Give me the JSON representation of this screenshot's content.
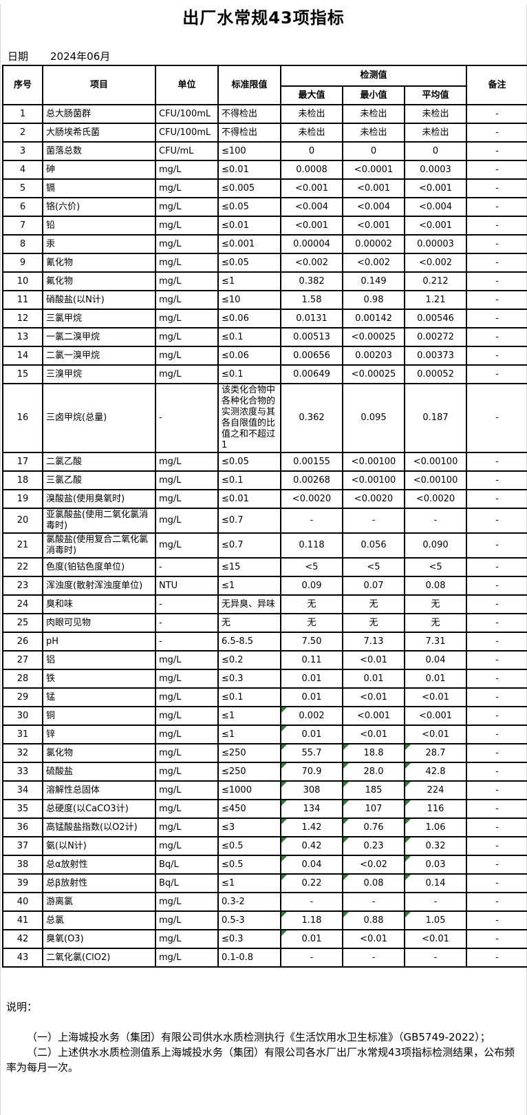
{
  "page": {
    "title": "出厂水常规43项指标",
    "date_label": "日期",
    "date_value": "2024年06月"
  },
  "table": {
    "headers": {
      "no": "序号",
      "item": "项目",
      "unit": "单位",
      "limit": "标准限值",
      "detection": "检测值",
      "max": "最大值",
      "min": "最小值",
      "avg": "平均值",
      "remark": "备注"
    },
    "marker_color": "#2e7d32",
    "rows": [
      {
        "no": "1",
        "item": "总大肠菌群",
        "unit": "CFU/100mL",
        "limit": "不得检出",
        "max": "未检出",
        "min": "未检出",
        "avg": "未检出",
        "remark": "-",
        "marks": []
      },
      {
        "no": "2",
        "item": "大肠埃希氏菌",
        "unit": "CFU/100mL",
        "limit": "不得检出",
        "max": "未检出",
        "min": "未检出",
        "avg": "未检出",
        "remark": "-",
        "marks": []
      },
      {
        "no": "3",
        "item": "菌落总数",
        "unit": "CFU/mL",
        "limit": "≤100",
        "max": "0",
        "min": "0",
        "avg": "0",
        "remark": "-",
        "marks": []
      },
      {
        "no": "4",
        "item": "砷",
        "unit": "mg/L",
        "limit": "≤0.01",
        "max": "0.0008",
        "min": "<0.0001",
        "avg": "0.0003",
        "remark": "-",
        "marks": []
      },
      {
        "no": "5",
        "item": "镉",
        "unit": "mg/L",
        "limit": "≤0.005",
        "max": "<0.001",
        "min": "<0.001",
        "avg": "<0.001",
        "remark": "-",
        "marks": []
      },
      {
        "no": "6",
        "item": "铬(六价)",
        "unit": "mg/L",
        "limit": "≤0.05",
        "max": "<0.004",
        "min": "<0.004",
        "avg": "<0.004",
        "remark": "-",
        "marks": []
      },
      {
        "no": "7",
        "item": "铅",
        "unit": "mg/L",
        "limit": "≤0.01",
        "max": "<0.001",
        "min": "<0.001",
        "avg": "<0.001",
        "remark": "-",
        "marks": []
      },
      {
        "no": "8",
        "item": "汞",
        "unit": "mg/L",
        "limit": "≤0.001",
        "max": "0.00004",
        "min": "0.00002",
        "avg": "0.00003",
        "remark": "-",
        "marks": []
      },
      {
        "no": "9",
        "item": "氰化物",
        "unit": "mg/L",
        "limit": "≤0.05",
        "max": "<0.002",
        "min": "<0.002",
        "avg": "<0.002",
        "remark": "-",
        "marks": []
      },
      {
        "no": "10",
        "item": "氟化物",
        "unit": "mg/L",
        "limit": "≤1",
        "max": "0.382",
        "min": "0.149",
        "avg": "0.212",
        "remark": "-",
        "marks": []
      },
      {
        "no": "11",
        "item": "硝酸盐(以N计)",
        "unit": "mg/L",
        "limit": "≤10",
        "max": "1.58",
        "min": "0.98",
        "avg": "1.21",
        "remark": "-",
        "marks": []
      },
      {
        "no": "12",
        "item": "三氯甲烷",
        "unit": "mg/L",
        "limit": "≤0.06",
        "max": "0.0131",
        "min": "0.00142",
        "avg": "0.00546",
        "remark": "-",
        "marks": []
      },
      {
        "no": "13",
        "item": "一氯二溴甲烷",
        "unit": "mg/L",
        "limit": "≤0.1",
        "max": "0.00513",
        "min": "<0.00025",
        "avg": "0.00272",
        "remark": "-",
        "marks": []
      },
      {
        "no": "14",
        "item": "二氯一溴甲烷",
        "unit": "mg/L",
        "limit": "≤0.06",
        "max": "0.00656",
        "min": "0.00203",
        "avg": "0.00373",
        "remark": "-",
        "marks": []
      },
      {
        "no": "15",
        "item": "三溴甲烷",
        "unit": "mg/L",
        "limit": "≤0.1",
        "max": "0.00649",
        "min": "<0.00025",
        "avg": "0.00052",
        "remark": "-",
        "marks": []
      },
      {
        "no": "16",
        "item": "三卤甲烷(总量)",
        "unit": "-",
        "limit": "该类化合物中各种化合物的实测浓度与其各自限值的比值之和不超过1",
        "max": "0.362",
        "min": "0.095",
        "avg": "0.187",
        "remark": "-",
        "marks": []
      },
      {
        "no": "17",
        "item": "二氯乙酸",
        "unit": "mg/L",
        "limit": "≤0.05",
        "max": "0.00155",
        "min": "<0.00100",
        "avg": "<0.00100",
        "remark": "-",
        "marks": []
      },
      {
        "no": "18",
        "item": "三氯乙酸",
        "unit": "mg/L",
        "limit": "≤0.1",
        "max": "0.00268",
        "min": "<0.00100",
        "avg": "<0.00100",
        "remark": "-",
        "marks": []
      },
      {
        "no": "19",
        "item": "溴酸盐(使用臭氧时)",
        "unit": "mg/L",
        "limit": "≤0.01",
        "max": "<0.0020",
        "min": "<0.0020",
        "avg": "<0.0020",
        "remark": "-",
        "marks": []
      },
      {
        "no": "20",
        "item": "亚氯酸盐(使用二氧化氯消毒时)",
        "unit": "mg/L",
        "limit": "≤0.7",
        "max": "-",
        "min": "-",
        "avg": "-",
        "remark": "-",
        "marks": []
      },
      {
        "no": "21",
        "item": "氯酸盐(使用复合二氧化氯消毒时)",
        "unit": "mg/L",
        "limit": "≤0.7",
        "max": "0.118",
        "min": "0.056",
        "avg": "0.090",
        "remark": "-",
        "marks": []
      },
      {
        "no": "22",
        "item": "色度(铂钴色度单位)",
        "unit": "-",
        "limit": "≤15",
        "max": "<5",
        "min": "<5",
        "avg": "<5",
        "remark": "-",
        "marks": []
      },
      {
        "no": "23",
        "item": "浑浊度(散射浑浊度单位)",
        "unit": "NTU",
        "limit": "≤1",
        "max": "0.09",
        "min": "0.07",
        "avg": "0.08",
        "remark": "-",
        "marks": []
      },
      {
        "no": "24",
        "item": "臭和味",
        "unit": "-",
        "limit": "无异臭、异味",
        "max": "无",
        "min": "无",
        "avg": "无",
        "remark": "-",
        "marks": []
      },
      {
        "no": "25",
        "item": "肉眼可见物",
        "unit": "-",
        "limit": "无",
        "max": "无",
        "min": "无",
        "avg": "无",
        "remark": "-",
        "marks": []
      },
      {
        "no": "26",
        "item": "pH",
        "unit": "-",
        "limit": "6.5-8.5",
        "max": "7.50",
        "min": "7.13",
        "avg": "7.31",
        "remark": "-",
        "marks": []
      },
      {
        "no": "27",
        "item": "铝",
        "unit": "mg/L",
        "limit": "≤0.2",
        "max": "0.11",
        "min": "<0.01",
        "avg": "0.04",
        "remark": "-",
        "marks": []
      },
      {
        "no": "28",
        "item": "铁",
        "unit": "mg/L",
        "limit": "≤0.3",
        "max": "0.01",
        "min": "0.01",
        "avg": "0.01",
        "remark": "-",
        "marks": []
      },
      {
        "no": "29",
        "item": "锰",
        "unit": "mg/L",
        "limit": "≤0.1",
        "max": "0.01",
        "min": "<0.01",
        "avg": "<0.01",
        "remark": "-",
        "marks": []
      },
      {
        "no": "30",
        "item": "铜",
        "unit": "mg/L",
        "limit": "≤1",
        "max": "0.002",
        "min": "<0.001",
        "avg": "<0.001",
        "remark": "-",
        "marks": [
          "max"
        ]
      },
      {
        "no": "31",
        "item": "锌",
        "unit": "mg/L",
        "limit": "≤1",
        "max": "0.01",
        "min": "<0.01",
        "avg": "<0.01",
        "remark": "-",
        "marks": [
          "max"
        ]
      },
      {
        "no": "32",
        "item": "氯化物",
        "unit": "mg/L",
        "limit": "≤250",
        "max": "55.7",
        "min": "18.8",
        "avg": "28.7",
        "remark": "-",
        "marks": [
          "max",
          "min",
          "avg"
        ]
      },
      {
        "no": "33",
        "item": "硫酸盐",
        "unit": "mg/L",
        "limit": "≤250",
        "max": "70.9",
        "min": "28.0",
        "avg": "42.8",
        "remark": "-",
        "marks": [
          "max",
          "min",
          "avg"
        ]
      },
      {
        "no": "34",
        "item": "溶解性总固体",
        "unit": "mg/L",
        "limit": "≤1000",
        "max": "308",
        "min": "185",
        "avg": "224",
        "remark": "-",
        "marks": [
          "max",
          "min",
          "avg"
        ]
      },
      {
        "no": "35",
        "item": "总硬度(以CaCO3计)",
        "unit": "mg/L",
        "limit": "≤450",
        "max": "134",
        "min": "107",
        "avg": "116",
        "remark": "-",
        "marks": [
          "max",
          "min",
          "avg"
        ]
      },
      {
        "no": "36",
        "item": "高锰酸盐指数(以O2计)",
        "unit": "mg/L",
        "limit": "≤3",
        "max": "1.42",
        "min": "0.76",
        "avg": "1.06",
        "remark": "-",
        "marks": [
          "max",
          "min",
          "avg"
        ]
      },
      {
        "no": "37",
        "item": "氨(以N计)",
        "unit": "mg/L",
        "limit": "≤0.5",
        "max": "0.42",
        "min": "0.23",
        "avg": "0.32",
        "remark": "-",
        "marks": [
          "max",
          "min",
          "avg"
        ]
      },
      {
        "no": "38",
        "item": "总α放射性",
        "unit": "Bq/L",
        "limit": "≤0.5",
        "max": "0.04",
        "min": "<0.02",
        "avg": "0.03",
        "remark": "-",
        "marks": [
          "max",
          "avg"
        ]
      },
      {
        "no": "39",
        "item": "总β放射性",
        "unit": "Bq/L",
        "limit": "≤1",
        "max": "0.22",
        "min": "0.08",
        "avg": "0.14",
        "remark": "-",
        "marks": [
          "max",
          "min",
          "avg"
        ]
      },
      {
        "no": "40",
        "item": "游离氯",
        "unit": "mg/L",
        "limit": "0.3-2",
        "max": "-",
        "min": "-",
        "avg": "-",
        "remark": "-",
        "marks": []
      },
      {
        "no": "41",
        "item": "总氯",
        "unit": "mg/L",
        "limit": "0.5-3",
        "max": "1.18",
        "min": "0.88",
        "avg": "1.05",
        "remark": "-",
        "marks": [
          "max",
          "min",
          "avg"
        ]
      },
      {
        "no": "42",
        "item": "臭氧(O3)",
        "unit": "mg/L",
        "limit": "≤0.3",
        "max": "0.01",
        "min": "<0.01",
        "avg": "<0.01",
        "remark": "-",
        "marks": [
          "max"
        ]
      },
      {
        "no": "43",
        "item": "二氧化氯(ClO2)",
        "unit": "mg/L",
        "limit": "0.1-0.8",
        "max": "-",
        "min": "-",
        "avg": "-",
        "remark": "-",
        "marks": []
      }
    ]
  },
  "notes": {
    "title": "说明：",
    "items": [
      "（一）上海城投水务（集团）有限公司供水水质检测执行《生活饮用水卫生标准》（GB5749-2022）；",
      "（二）上述供水水质检测值系上海城投水务（集团）有限公司各水厂出厂水常规43项指标检测结果，公布频率为每月一次。"
    ]
  }
}
